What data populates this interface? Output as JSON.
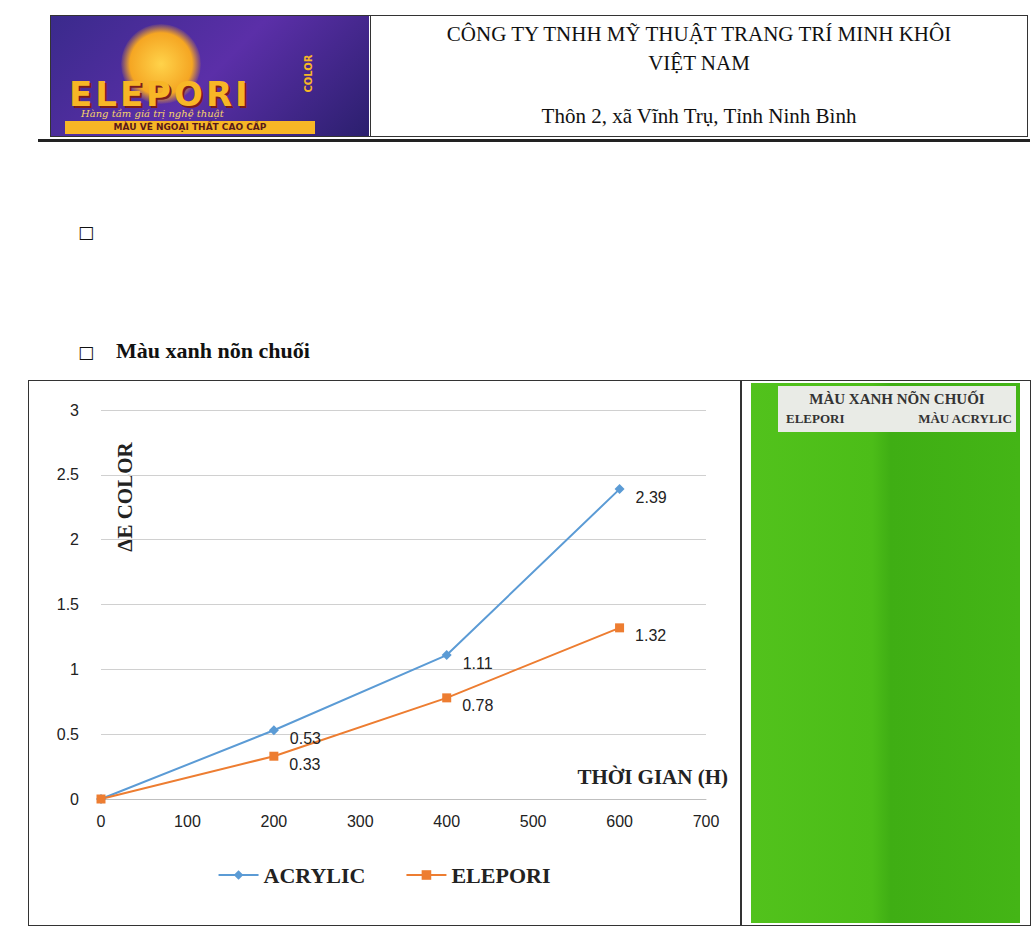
{
  "header": {
    "logo": {
      "brand": "ELEPORI",
      "badge": "COLOR",
      "slogan": "Hàng tầm giá trị nghệ thuật",
      "tagline": "MÀU VẼ NGOẠI THẤT CAO CẤP"
    },
    "company": [
      "CÔNG TY TNHH MỸ THUẬT TRANG TRÍ MINH KHÔI",
      "VIỆT NAM"
    ],
    "address": "Thôn 2, xã Vĩnh Trụ, Tỉnh Ninh Bình"
  },
  "bullets": [
    "□",
    "□"
  ],
  "heading": "Màu xanh nõn chuối",
  "chart_data": {
    "type": "line",
    "x_label": "THỜI GIAN (H)",
    "y_label": "ΔE COLOR",
    "x": [
      0,
      200,
      400,
      600
    ],
    "series": [
      {
        "name": "ACRYLIC",
        "color": "#5b9bd5",
        "marker": "diamond",
        "values": [
          0,
          0.53,
          1.11,
          2.39
        ],
        "value_labels": [
          null,
          "0.53",
          "1.11",
          "2.39"
        ]
      },
      {
        "name": "ELEPORI",
        "color": "#ed7d31",
        "marker": "square",
        "values": [
          0,
          0.33,
          0.78,
          1.32
        ],
        "value_labels": [
          null,
          "0.33",
          "0.78",
          "1.32"
        ]
      }
    ],
    "xlim": [
      0,
      700
    ],
    "xticks": [
      0,
      100,
      200,
      300,
      400,
      500,
      600,
      700
    ],
    "ylim": [
      0,
      3
    ],
    "yticks": [
      0,
      0.5,
      1,
      1.5,
      2,
      2.5,
      3
    ],
    "grid": true,
    "legend": "bottom",
    "data_labels": true
  },
  "photo": {
    "title": "MÀU XANH NÕN CHUỐI",
    "labels": [
      "ELEPORI",
      "MÀU ACRYLIC"
    ]
  }
}
